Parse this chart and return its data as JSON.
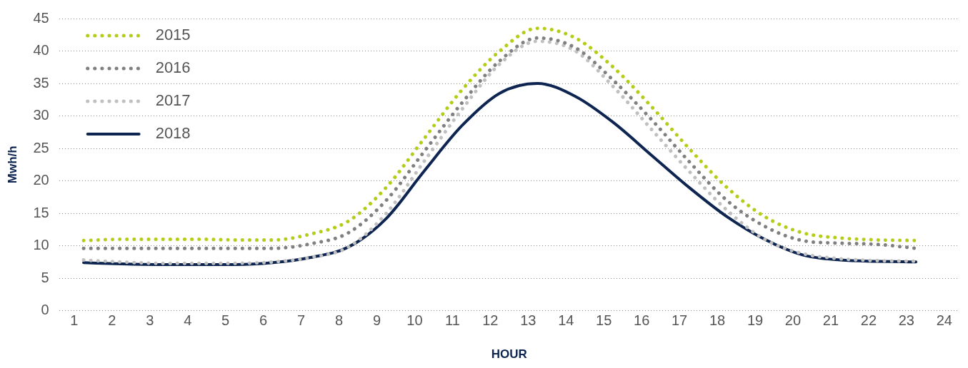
{
  "chart_data": {
    "type": "line",
    "xlabel": "HOUR",
    "ylabel": "Mwh/h",
    "xlim": [
      0.6,
      24.4
    ],
    "xticks": [
      1,
      2,
      3,
      4,
      5,
      6,
      7,
      8,
      9,
      10,
      11,
      12,
      13,
      14,
      15,
      16,
      17,
      18,
      19,
      20,
      21,
      22,
      23,
      24
    ],
    "ylim": [
      0,
      45
    ],
    "yticks": [
      0,
      5,
      10,
      15,
      20,
      25,
      30,
      35,
      40,
      45
    ],
    "x": [
      1.25,
      2.25,
      3.25,
      4.25,
      5.25,
      6.25,
      7.25,
      8.25,
      9.25,
      10.25,
      11.25,
      12.25,
      13.25,
      14.25,
      15.25,
      16.25,
      17.25,
      18.25,
      19.25,
      20.25,
      21.25,
      22.25,
      23.25
    ],
    "grid": "y",
    "legend": "top left",
    "marker": "none",
    "series": [
      {
        "name": "2015",
        "color": "#b5cc18",
        "line_style": "dotted",
        "values": [
          10.8,
          11,
          11,
          11,
          10.9,
          10.9,
          11.8,
          13.8,
          19,
          26.5,
          34,
          40,
          43.5,
          42,
          37.5,
          31.5,
          25,
          19,
          14.5,
          12,
          11.2,
          10.9,
          10.8
        ]
      },
      {
        "name": "2016",
        "color": "#808080",
        "line_style": "dotted",
        "values": [
          9.6,
          9.6,
          9.6,
          9.6,
          9.6,
          9.6,
          10.3,
          12,
          17,
          24.5,
          32,
          38.5,
          42,
          40.5,
          35.5,
          29.5,
          23,
          17,
          13,
          10.8,
          10.4,
          10.2,
          9.6
        ]
      },
      {
        "name": "2017",
        "color": "#c0c0c0",
        "line_style": "dotted",
        "values": [
          7.8,
          7.5,
          7.3,
          7.3,
          7.3,
          7.5,
          8.2,
          9.8,
          15,
          23,
          31,
          38,
          41.5,
          40,
          34.5,
          28,
          21.5,
          15.5,
          11,
          8.8,
          8,
          7.7,
          7.6
        ]
      },
      {
        "name": "2018",
        "color": "#0d2550",
        "line_style": "solid",
        "values": [
          7.4,
          7.2,
          7.1,
          7.1,
          7.1,
          7.4,
          8.2,
          9.8,
          14.2,
          21.5,
          28.5,
          33.5,
          35,
          33,
          29,
          24,
          19,
          14.5,
          11,
          8.6,
          7.8,
          7.6,
          7.5
        ]
      }
    ]
  }
}
